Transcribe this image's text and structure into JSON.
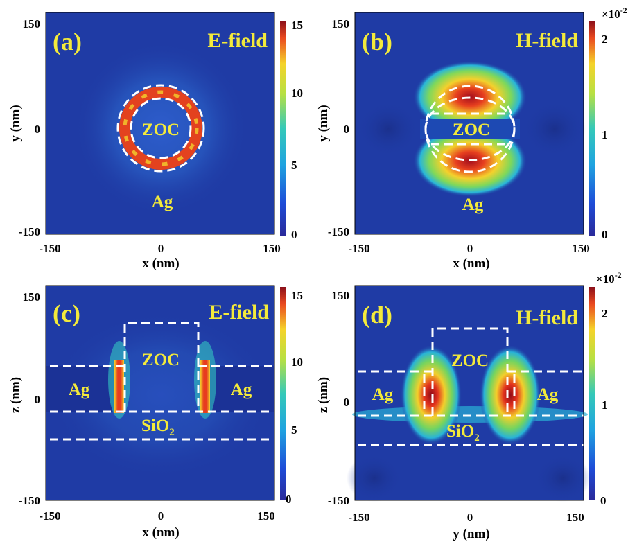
{
  "chart_data": [
    {
      "type": "heatmap",
      "panel_label": "(a)",
      "field_label": "E-field",
      "xlabel": "x (nm)",
      "ylabel": "y (nm)",
      "xlim": [
        -150,
        150
      ],
      "ylim": [
        -150,
        150
      ],
      "x_ticks": [
        "-150",
        "0",
        "150"
      ],
      "y_ticks": [
        "150",
        "0",
        "-150"
      ],
      "colorbar": {
        "min": 0,
        "max": 15,
        "ticks": [
          "15",
          "10",
          "5",
          "0"
        ],
        "multiplier": ""
      },
      "annotations": [
        "ZOC",
        "Ag"
      ],
      "peak_region": "ring around ZOC circle"
    },
    {
      "type": "heatmap",
      "panel_label": "(b)",
      "field_label": "H-field",
      "xlabel": "x (nm)",
      "ylabel": "y (nm)",
      "xlim": [
        -150,
        150
      ],
      "ylim": [
        -150,
        150
      ],
      "x_ticks": [
        "-150",
        "0",
        "150"
      ],
      "y_ticks": [
        "150",
        "0",
        "-150"
      ],
      "colorbar": {
        "min": 0,
        "max": 2.2,
        "ticks": [
          "2",
          "1",
          "0"
        ],
        "multiplier": "×10",
        "multiplier_exp": "-2"
      },
      "annotations": [
        "ZOC",
        "Ag"
      ],
      "peak_region": "top and bottom lobes of ZOC"
    },
    {
      "type": "heatmap",
      "panel_label": "(c)",
      "field_label": "E-field",
      "xlabel": "x (nm)",
      "ylabel": "z (nm)",
      "xlim": [
        -150,
        150
      ],
      "ylim": [
        -150,
        150
      ],
      "x_ticks": [
        "-150",
        "0",
        "150"
      ],
      "y_ticks": [
        "150",
        "0",
        "-150"
      ],
      "colorbar": {
        "min": 0,
        "max": 16,
        "ticks": [
          "15",
          "10",
          "5",
          "0"
        ],
        "multiplier": ""
      },
      "annotations": [
        "ZOC",
        "Ag",
        "Ag",
        "SiO",
        "2"
      ],
      "peak_region": "vertical side walls of ZOC"
    },
    {
      "type": "heatmap",
      "panel_label": "(d)",
      "field_label": "H-field",
      "xlabel": "y (nm)",
      "ylabel": "z (nm)",
      "xlim": [
        -150,
        150
      ],
      "ylim": [
        -150,
        150
      ],
      "x_ticks": [
        "-150",
        "0",
        "150"
      ],
      "y_ticks": [
        "150",
        "0",
        "-150"
      ],
      "colorbar": {
        "min": 0,
        "max": 2.3,
        "ticks": [
          "2",
          "1",
          "0"
        ],
        "multiplier": "×10",
        "multiplier_exp": "-2"
      },
      "annotations": [
        "ZOC",
        "Ag",
        "Ag",
        "SiO",
        "2"
      ],
      "peak_region": "lobes at ZOC side walls"
    }
  ],
  "colors": {
    "background_field": "#1f3ba5",
    "label_yellow": "#f3ea3b",
    "outline_dash": "#ffffff"
  }
}
